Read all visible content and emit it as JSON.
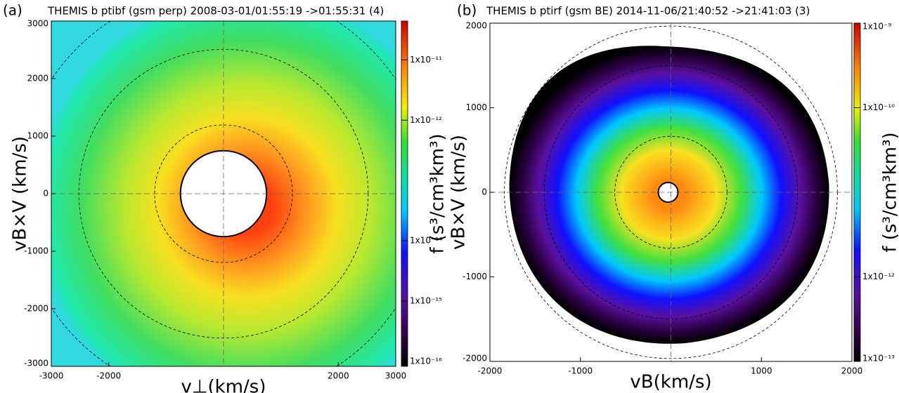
{
  "chart_data": [
    {
      "type": "contour",
      "panel_label": "(a)",
      "title": "THEMIS b ptibf (gsm perp) 2008-03-01/01:55:19 ->01:55:31 (4)",
      "xlabel": "v⊥(km/s)",
      "ylabel": "vB×V (km/s)",
      "colorbar_label": "f (s³/cm³km³)",
      "xlim": [
        -3000,
        3000
      ],
      "ylim": [
        -3000,
        3000
      ],
      "xticks": [
        -3000,
        -2000,
        2000,
        3000
      ],
      "yticks": [
        -3000,
        -2000,
        -1000,
        0,
        1000,
        2000,
        3000
      ],
      "zlog": true,
      "zlim": [
        8.3e-17,
        4.4e-11
      ],
      "zticks": [
        {
          "value": 1e-11,
          "label": "1x10⁻¹¹"
        },
        {
          "value": 1e-12,
          "label": "1x10⁻¹²"
        },
        {
          "value": 1e-14,
          "label": "1x10⁻¹⁴"
        },
        {
          "value": 1e-15,
          "label": "1x10⁻¹⁵"
        },
        {
          "value": 1e-16,
          "label": "1x10⁻¹⁶"
        }
      ]
    },
    {
      "type": "contour",
      "panel_label": "(b)",
      "title": "THEMIS b ptirf (gsm BE) 2014-11-06/21:40:52 ->21:41:03 (3)",
      "xlabel": "vB(km/s)",
      "ylabel": "vB×V (km/s)",
      "colorbar_label": "f (s³/cm³km³)",
      "xlim": [
        -2000,
        2000
      ],
      "ylim": [
        -2000,
        2000
      ],
      "xticks": [
        -2000,
        -1000,
        1000,
        2000
      ],
      "yticks": [
        -2000,
        -1000,
        0,
        1000,
        2000
      ],
      "zlog": true,
      "zlim": [
        1e-13,
        1e-09
      ],
      "zticks": [
        {
          "value": 1e-09,
          "label": "1x10⁻⁹"
        },
        {
          "value": 1e-10,
          "label": "1x10⁻¹⁰"
        },
        {
          "value": 1e-12,
          "label": "1x10⁻¹²"
        },
        {
          "value": 1e-13,
          "label": "1x10⁻¹³"
        }
      ]
    }
  ]
}
